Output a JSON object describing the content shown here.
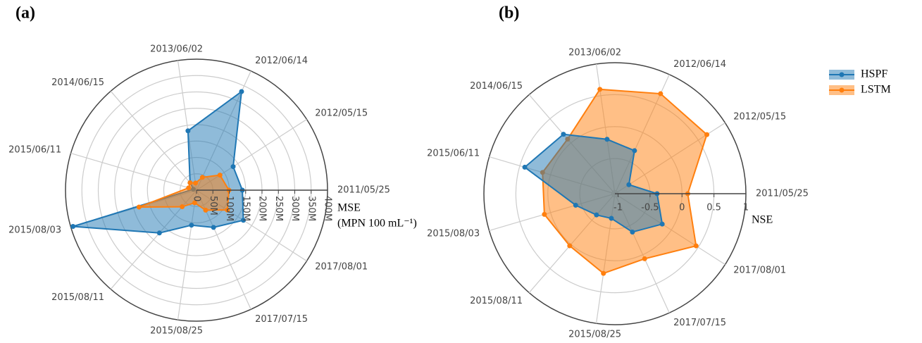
{
  "chart_data": [
    {
      "type": "radar",
      "title": "(a)",
      "r_label": [
        "MSE",
        "(MPN 100 mL⁻¹)"
      ],
      "categories": [
        "2011/05/25",
        "2012/05/15",
        "2012/06/14",
        "2013/06/02",
        "2014/06/15",
        "2015/06/11",
        "2015/08/03",
        "2015/08/11",
        "2015/08/25",
        "2017/07/15",
        "2017/08/01"
      ],
      "rlim": [
        0,
        400000000
      ],
      "rticks": [
        0,
        {
          "value": 50000000,
          "label": "50M"
        },
        {
          "value": 100000000,
          "label": "100M"
        },
        {
          "value": 150000000,
          "label": "150M"
        },
        {
          "value": 200000000,
          "label": "200M"
        },
        {
          "value": 250000000,
          "label": "250M"
        },
        {
          "value": 300000000,
          "label": "300M"
        },
        {
          "value": 350000000,
          "label": "350M"
        },
        {
          "value": 400000000,
          "label": "400M"
        }
      ],
      "grid": true,
      "series": [
        {
          "name": "HSPF",
          "color": "#1f77b4",
          "values": [
            140000000,
            133000000,
            331000000,
            183000000,
            30000000,
            10000000,
            393000000,
            173000000,
            108000000,
            125000000,
            170000000
          ]
        },
        {
          "name": "LSTM",
          "color": "#ff7f0e",
          "values": [
            99000000,
            85000000,
            43000000,
            22000000,
            30000000,
            25000000,
            183000000,
            67000000,
            39000000,
            67000000,
            112000000
          ]
        }
      ]
    },
    {
      "type": "radar",
      "title": "(b)",
      "r_label": [
        "NSE"
      ],
      "categories": [
        "2011/05/25",
        "2012/05/15",
        "2012/06/14",
        "2013/06/02",
        "2014/06/15",
        "2015/06/11",
        "2015/08/03",
        "2015/08/11",
        "2015/08/25",
        "2017/07/15",
        "2017/08/01"
      ],
      "rlim": [
        -1.05,
        1
      ],
      "rticks": [
        -1,
        -0.5,
        0,
        0.5,
        1
      ],
      "grid": true,
      "legend": "right",
      "series": [
        {
          "name": "LSTM",
          "color": "#ff7f0e",
          "values": [
            0.09,
            0.66,
            0.67,
            0.6,
            0.08,
            0.13,
            0.1,
            0.03,
            0.21,
            0.07,
            0.46
          ]
        },
        {
          "name": "HSPF",
          "color": "#1f77b4",
          "values": [
            -0.39,
            -0.79,
            -0.31,
            -0.19,
            0.18,
            0.42,
            -0.41,
            -0.61,
            -0.66,
            -0.39,
            -0.17
          ]
        }
      ]
    }
  ]
}
